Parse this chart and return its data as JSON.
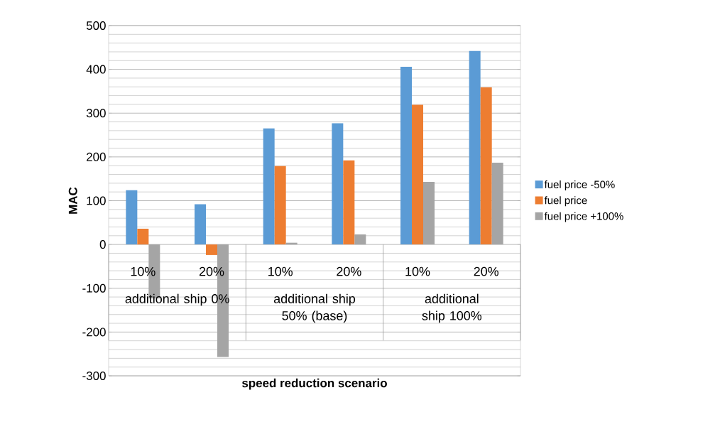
{
  "chart_data": {
    "type": "bar",
    "xlabel": "speed reduction scenario",
    "ylabel": "MAC",
    "categories": [
      "10%",
      "20%",
      "10%",
      "20%",
      "10%",
      "20%"
    ],
    "annotations": [
      "additional ship 0%",
      "additional ship 50% (base)",
      "additional ship 100%"
    ],
    "series": [
      {
        "name": "fuel price -50%",
        "color": "#5b9bd5",
        "values": [
          124,
          92,
          265,
          277,
          406,
          442
        ]
      },
      {
        "name": "fuel price",
        "color": "#ed7d31",
        "values": [
          36,
          -24,
          179,
          192,
          319,
          359
        ]
      },
      {
        "name": "fuel price +100%",
        "color": "#a5a5a5",
        "values": [
          -123,
          -257,
          4,
          23,
          143,
          187
        ]
      }
    ],
    "ylim": [
      -300,
      500
    ],
    "yticks": [
      -300,
      -200,
      -100,
      0,
      100,
      200,
      300,
      400,
      500
    ],
    "grid": "y",
    "legend": "right"
  }
}
